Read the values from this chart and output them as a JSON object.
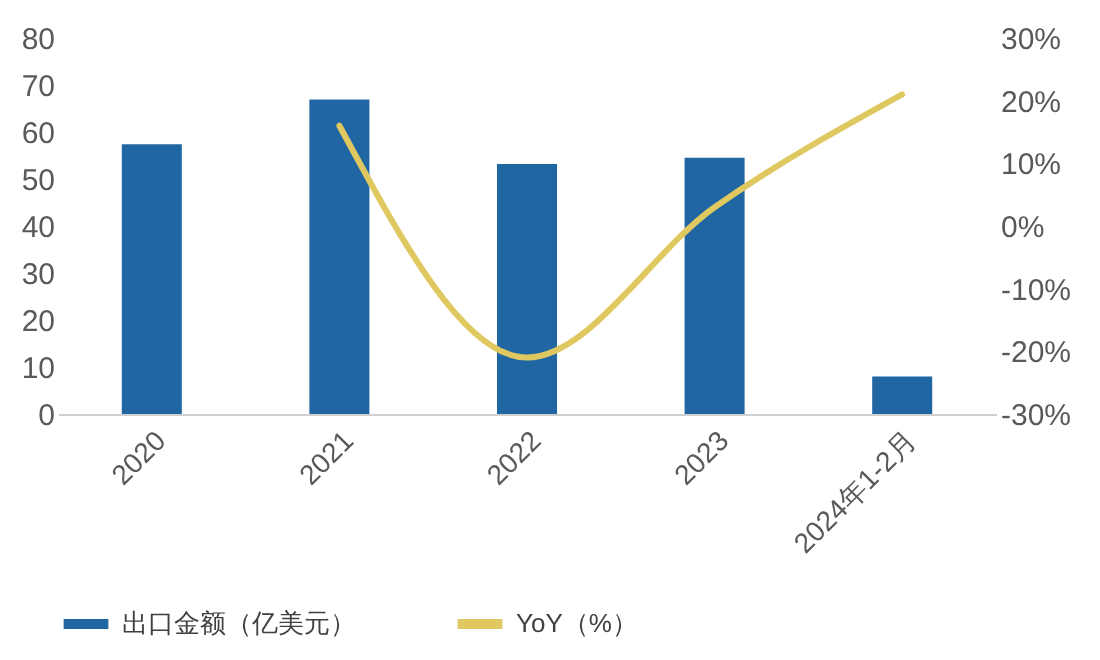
{
  "chart_data": {
    "type": "bar",
    "categories": [
      "2020",
      "2021",
      "2022",
      "2023",
      "2024年1-2月"
    ],
    "series": [
      {
        "name": "出口金额（亿美元）",
        "color": "#1f66a3",
        "values": [
          57.4,
          66.9,
          53.2,
          54.5,
          8.0
        ]
      },
      {
        "name": "YoY（%）",
        "type": "line",
        "axis": "y2",
        "color": "#e0c860",
        "values": [
          null,
          16,
          -21,
          3,
          21
        ]
      }
    ],
    "ylim": [
      0,
      80
    ],
    "yticks": [
      0,
      10,
      20,
      30,
      40,
      50,
      60,
      70,
      80
    ],
    "y2lim": [
      -30,
      30
    ],
    "y2ticks": [
      {
        "value": -30,
        "label": "-30%"
      },
      {
        "value": -20,
        "label": "-20%"
      },
      {
        "value": -10,
        "label": "-10%"
      },
      {
        "value": 0,
        "label": "0%"
      },
      {
        "value": 10,
        "label": "10%"
      },
      {
        "value": 20,
        "label": "20%"
      },
      {
        "value": 30,
        "label": "30%"
      }
    ],
    "legend": "bottom",
    "grid": false
  }
}
